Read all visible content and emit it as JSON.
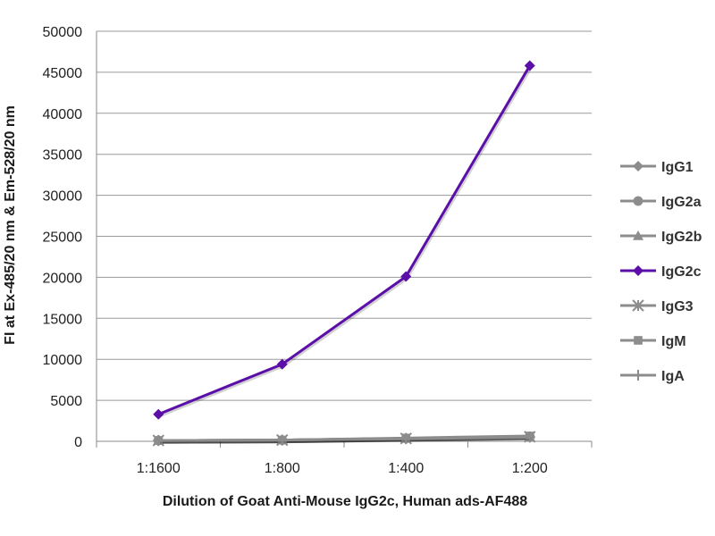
{
  "chart_data": {
    "type": "line",
    "title": "",
    "xlabel": "Dilution of Goat Anti-Mouse IgG2c, Human ads-AF488",
    "ylabel": "FI at Ex-485/20 nm & Em-528/20 nm",
    "categories": [
      "1:1600",
      "1:800",
      "1:400",
      "1:200"
    ],
    "ylim": [
      0,
      50000
    ],
    "yticks": [
      0,
      5000,
      10000,
      15000,
      20000,
      25000,
      30000,
      35000,
      40000,
      45000,
      50000
    ],
    "grid": true,
    "legend_position": "right",
    "series": [
      {
        "name": "IgG1",
        "values": [
          100,
          150,
          350,
          550
        ],
        "color": "#8c8c8c",
        "marker": "diamond"
      },
      {
        "name": "IgG2a",
        "values": [
          100,
          150,
          350,
          600
        ],
        "color": "#8c8c8c",
        "marker": "circle"
      },
      {
        "name": "IgG2b",
        "values": [
          100,
          150,
          350,
          550
        ],
        "color": "#8c8c8c",
        "marker": "triangle"
      },
      {
        "name": "IgG2c",
        "values": [
          3300,
          9400,
          20100,
          45800
        ],
        "color": "#5b0fa8",
        "marker": "diamond"
      },
      {
        "name": "IgG3",
        "values": [
          100,
          150,
          350,
          550
        ],
        "color": "#8c8c8c",
        "marker": "star"
      },
      {
        "name": "IgM",
        "values": [
          100,
          150,
          400,
          650
        ],
        "color": "#8c8c8c",
        "marker": "square"
      },
      {
        "name": "IgA",
        "values": [
          100,
          150,
          300,
          500
        ],
        "color": "#8c8c8c",
        "marker": "plus"
      }
    ]
  }
}
